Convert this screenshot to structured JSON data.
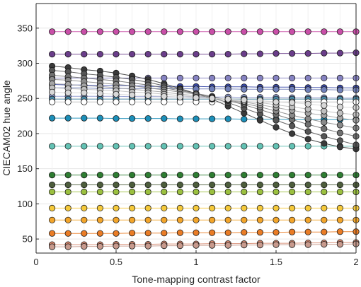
{
  "chart_data": {
    "type": "line",
    "xlabel": "Tone-mapping contrast factor",
    "ylabel": "CIECAM02 hue angle",
    "xlim": [
      0,
      2
    ],
    "ylim": [
      30,
      385
    ],
    "xticks": [
      0,
      0.5,
      1,
      1.5,
      2
    ],
    "xtick_labels": [
      "0",
      "0.5",
      "1",
      "1.5",
      "2"
    ],
    "yticks": [
      50,
      100,
      150,
      200,
      250,
      300,
      350
    ],
    "ytick_labels": [
      "50",
      "100",
      "150",
      "200",
      "250",
      "300",
      "350"
    ],
    "grid": true,
    "x": [
      0.1,
      0.2,
      0.3,
      0.4,
      0.5,
      0.6,
      0.7,
      0.8,
      0.9,
      1.0,
      1.1,
      1.2,
      1.3,
      1.4,
      1.5,
      1.6,
      1.7,
      1.8,
      1.9,
      2.0
    ],
    "series": [
      {
        "color": "#c94fa8",
        "values": [
          345,
          345,
          345,
          345,
          345,
          345,
          345,
          345,
          345,
          345,
          345,
          345,
          345,
          345,
          345,
          345,
          345,
          345,
          345,
          345
        ]
      },
      {
        "color": "#6a3d8a",
        "values": [
          313,
          313,
          313,
          313,
          313,
          313,
          313,
          313,
          313,
          313,
          313,
          313,
          313.5,
          313.5,
          314,
          314,
          314,
          314.5,
          314.5,
          315
        ]
      },
      {
        "color": "#8683c2",
        "values": [
          279,
          279,
          279,
          279,
          279,
          279,
          279,
          279,
          279,
          279,
          279,
          279,
          279,
          279,
          279,
          279,
          279,
          279,
          279,
          279
        ]
      },
      {
        "color": "#3949a8",
        "values": [
          270,
          269,
          269,
          268,
          268,
          268,
          267,
          267,
          267,
          267,
          266.5,
          266.5,
          266.5,
          266,
          266,
          266,
          265.5,
          265.5,
          265,
          265
        ]
      },
      {
        "color": "#6f7fb8",
        "values": [
          265,
          265,
          265,
          264,
          264,
          264,
          264,
          264,
          264,
          263.5,
          263.5,
          263.5,
          263,
          263,
          263,
          263,
          262.5,
          262.5,
          262,
          262
        ]
      },
      {
        "color": "#8f9ad0",
        "values": [
          253,
          253,
          253,
          253,
          253,
          252.5,
          252.5,
          252.5,
          252,
          252,
          252,
          252,
          251.5,
          251.5,
          251.5,
          251,
          251,
          251,
          250.5,
          250.5
        ]
      },
      {
        "color": "#4a8aa6",
        "values": [
          249,
          249,
          249,
          249,
          249,
          249,
          249,
          249,
          249,
          249,
          249,
          249,
          249,
          249,
          249,
          249,
          249,
          249,
          249,
          249
        ]
      },
      {
        "color": "#1c8fb9",
        "values": [
          222,
          222,
          222,
          222,
          221.5,
          221.5,
          221.5,
          221.5,
          221,
          221,
          221,
          221,
          220.5,
          220.5,
          220.5,
          220,
          220,
          220,
          220,
          220
        ]
      },
      {
        "color": "#63c2b4",
        "values": [
          182,
          182,
          182,
          182,
          182,
          182,
          182,
          182,
          182,
          182,
          182,
          182,
          182,
          182,
          182,
          182,
          182,
          182,
          182,
          182
        ]
      },
      {
        "color": "#ffffff",
        "values": [
          245,
          245,
          245,
          245,
          245,
          245,
          245,
          245,
          245,
          245,
          245,
          245,
          245,
          245,
          245,
          245,
          245,
          245,
          245,
          245
        ]
      },
      {
        "color": "#3a3a3a",
        "values": [
          296,
          294,
          291,
          289,
          286,
          282,
          277,
          271,
          264,
          257,
          249,
          239,
          229,
          219,
          209,
          200,
          192,
          186,
          181,
          178
        ]
      },
      {
        "color": "#555555",
        "values": [
          290,
          288,
          285,
          283,
          280,
          277,
          273,
          268,
          263,
          257,
          251,
          244,
          236,
          228,
          219,
          211,
          203,
          196,
          190,
          184
        ]
      },
      {
        "color": "#707070",
        "values": [
          283,
          281,
          279,
          277,
          275,
          272,
          269,
          265,
          261,
          257,
          253,
          247,
          241,
          234,
          227,
          220,
          213,
          207,
          201,
          196
        ]
      },
      {
        "color": "#8a8a8a",
        "values": [
          277,
          276,
          274,
          272,
          270,
          268,
          265,
          262,
          259,
          256,
          252,
          248,
          243,
          238,
          232,
          226,
          221,
          216,
          212,
          208
        ]
      },
      {
        "color": "#a5a5a5",
        "values": [
          271,
          270,
          268,
          267,
          265,
          263,
          261,
          259,
          256,
          254,
          251,
          248,
          245,
          241,
          237,
          233,
          229,
          226,
          222,
          219
        ]
      },
      {
        "color": "#c0c0c0",
        "values": [
          265,
          264,
          263,
          262,
          261,
          259,
          258,
          256,
          254,
          252,
          250,
          248,
          246,
          244,
          241,
          238,
          235,
          232,
          229,
          227
        ]
      },
      {
        "color": "#d8d8d8",
        "values": [
          259,
          258,
          258,
          257,
          256,
          255,
          254,
          253,
          252,
          251,
          250,
          249,
          248,
          247,
          245,
          244,
          242,
          240,
          238,
          237
        ]
      },
      {
        "color": "#2e7d32",
        "values": [
          141,
          141,
          141,
          141,
          141,
          141,
          141,
          141,
          141,
          141,
          141,
          141,
          141,
          141,
          141,
          141,
          141,
          141,
          141,
          141
        ]
      },
      {
        "color": "#4d5d3c",
        "values": [
          127,
          127,
          127,
          127,
          127,
          127,
          127,
          127,
          127,
          127,
          127,
          127,
          127,
          127,
          127,
          127,
          127,
          127,
          127,
          127
        ]
      },
      {
        "color": "#9bc03f",
        "values": [
          117,
          117,
          117,
          117,
          117,
          117,
          117,
          117,
          117,
          117,
          117,
          117,
          117,
          117,
          117,
          117,
          117,
          117,
          117,
          117
        ]
      },
      {
        "color": "#f5c93a",
        "values": [
          94,
          94,
          94,
          94,
          94,
          94,
          94,
          94,
          94,
          94,
          94,
          94,
          94,
          94,
          94,
          94,
          94,
          94,
          94,
          94
        ]
      },
      {
        "color": "#f3a52a",
        "values": [
          77,
          77,
          77,
          77,
          77,
          77,
          77,
          77,
          77,
          77,
          77,
          77,
          77,
          77,
          77,
          77,
          77,
          77,
          77,
          77
        ]
      },
      {
        "color": "#ea7c25",
        "values": [
          58,
          58,
          58,
          58,
          58,
          58.5,
          58.5,
          58.5,
          59,
          59,
          59,
          59,
          59.5,
          59.5,
          59.5,
          60,
          60,
          60,
          60.5,
          60.5
        ]
      },
      {
        "color": "#d6876d",
        "values": [
          42,
          42,
          42,
          42,
          42.5,
          42.5,
          42.5,
          43,
          43,
          43,
          43.5,
          43.5,
          43.5,
          44,
          44,
          44,
          44.5,
          44.5,
          45,
          45
        ]
      },
      {
        "color": "#c89a8d",
        "values": [
          39,
          39,
          39.5,
          39.5,
          40,
          40,
          40,
          40.5,
          40.5,
          41,
          41,
          41,
          41.5,
          41.5,
          42,
          42,
          42,
          42.5,
          42.5,
          43
        ]
      }
    ]
  }
}
